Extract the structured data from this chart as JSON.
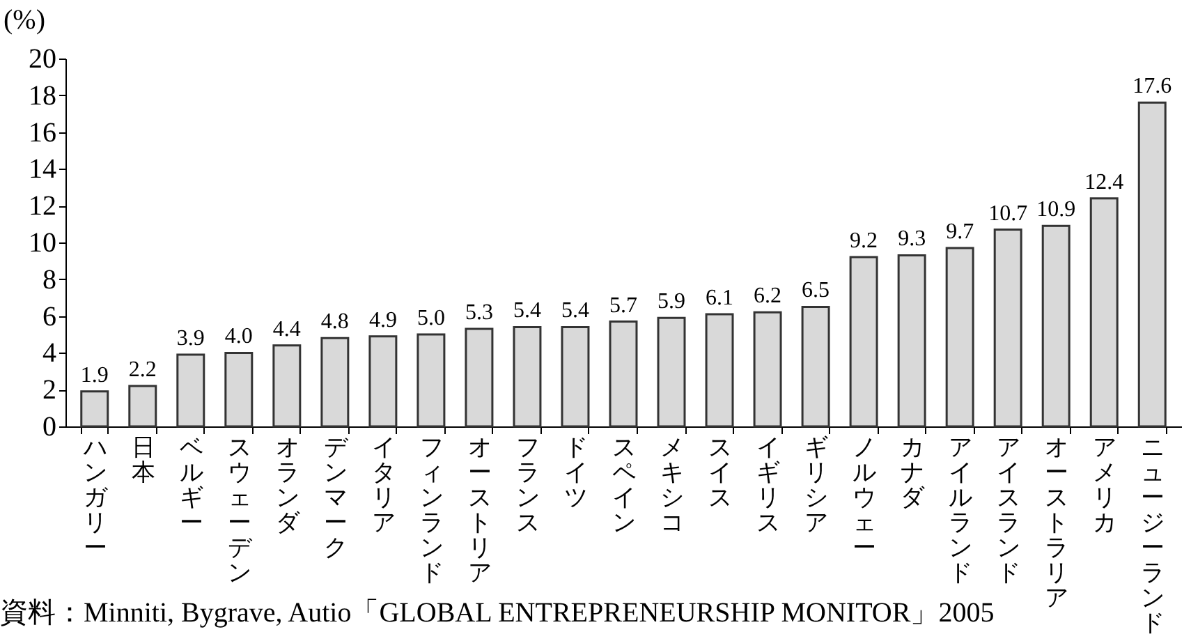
{
  "chart_data": {
    "type": "bar",
    "ylabel": "(%)",
    "categories": [
      "ハンガリー",
      "日本",
      "ベルギー",
      "スウェーデン",
      "オランダ",
      "デンマーク",
      "イタリア",
      "フィンランド",
      "オーストリア",
      "フランス",
      "ドイツ",
      "スペイン",
      "メキシコ",
      "スイス",
      "イギリス",
      "ギリシア",
      "ノルウェー",
      "カナダ",
      "アイルランド",
      "アイスランド",
      "オーストラリア",
      "アメリカ",
      "ニュージーランド"
    ],
    "values": [
      1.9,
      2.2,
      3.9,
      4.0,
      4.4,
      4.8,
      4.9,
      5.0,
      5.3,
      5.4,
      5.4,
      5.7,
      5.9,
      6.1,
      6.2,
      6.5,
      9.2,
      9.3,
      9.7,
      10.7,
      10.9,
      12.4,
      17.6
    ],
    "value_labels": [
      "1.9",
      "2.2",
      "3.9",
      "4.0",
      "4.4",
      "4.8",
      "4.9",
      "5.0",
      "5.3",
      "5.4",
      "5.4",
      "5.7",
      "5.9",
      "6.1",
      "6.2",
      "6.5",
      "9.2",
      "9.3",
      "9.7",
      "10.7",
      "10.9",
      "12.4",
      "17.6"
    ],
    "color": "#d9d9d9",
    "ylim": [
      0,
      20
    ],
    "yticks": [
      0,
      2,
      4,
      6,
      8,
      10,
      12,
      14,
      16,
      18,
      20
    ],
    "annotations": [
      "資料：Minniti, Bygrave, Autio「GLOBAL ENTREPRENEURSHIP MONITOR」2005"
    ]
  }
}
